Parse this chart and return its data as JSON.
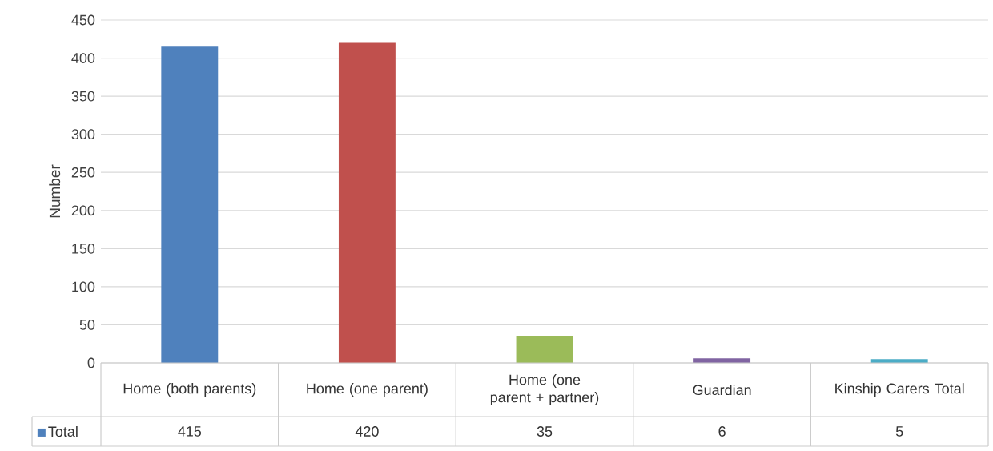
{
  "chart_data": {
    "type": "bar",
    "ylabel": "Number",
    "categories": [
      "Home (both parents)",
      "Home (one parent)",
      "Home (one parent + partner)",
      "Guardian",
      "Kinship Carers Total"
    ],
    "series": [
      {
        "name": "Total",
        "color": "#4f81bd",
        "colors": [
          "#4f81bd",
          "#c0504d",
          "#9bbb59",
          "#8064a2",
          "#4bacc6"
        ],
        "values": [
          415,
          420,
          35,
          6,
          5
        ]
      }
    ],
    "ylim": [
      0,
      450
    ],
    "yticks": [
      0,
      50,
      100,
      150,
      200,
      250,
      300,
      350,
      400,
      450
    ],
    "grid": "y",
    "data_labels": true,
    "legend": "bottom left"
  }
}
